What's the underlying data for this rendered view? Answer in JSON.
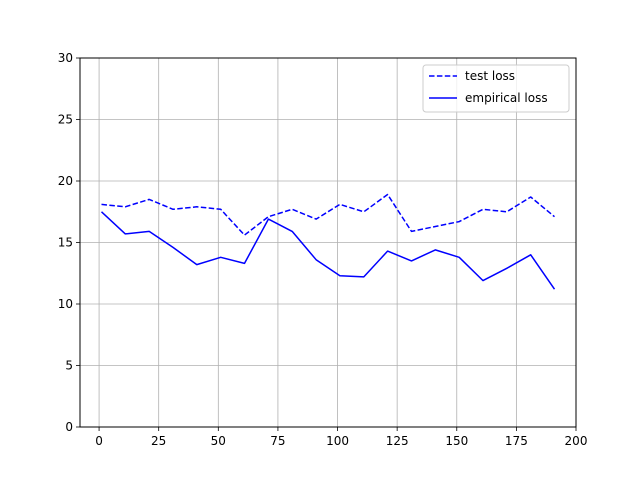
{
  "chart_data": {
    "type": "line",
    "title": "",
    "xlabel": "",
    "ylabel": "",
    "xlim": [
      -8,
      200
    ],
    "ylim": [
      0,
      30
    ],
    "xticks": [
      0,
      25,
      50,
      75,
      100,
      125,
      150,
      175,
      200
    ],
    "yticks": [
      0,
      5,
      10,
      15,
      20,
      25,
      30
    ],
    "grid": true,
    "legend_placement": "top-right",
    "x": [
      1,
      11,
      21,
      31,
      41,
      51,
      61,
      71,
      81,
      91,
      101,
      111,
      121,
      131,
      141,
      151,
      161,
      171,
      181,
      191
    ],
    "series": [
      {
        "name": "test loss",
        "style": "dashed",
        "color": "#0000ff",
        "values": [
          18.1,
          17.9,
          18.5,
          17.7,
          17.9,
          17.7,
          15.6,
          17.1,
          17.7,
          16.9,
          18.1,
          17.5,
          18.9,
          15.9,
          16.3,
          16.7,
          17.7,
          17.5,
          18.7,
          17.1
        ]
      },
      {
        "name": "empirical loss",
        "style": "solid",
        "color": "#0000ff",
        "values": [
          17.5,
          15.7,
          15.9,
          14.6,
          13.2,
          13.8,
          13.3,
          16.9,
          15.9,
          13.6,
          12.3,
          12.2,
          14.3,
          13.5,
          14.4,
          13.8,
          11.9,
          12.9,
          14.0,
          11.2
        ]
      }
    ]
  }
}
